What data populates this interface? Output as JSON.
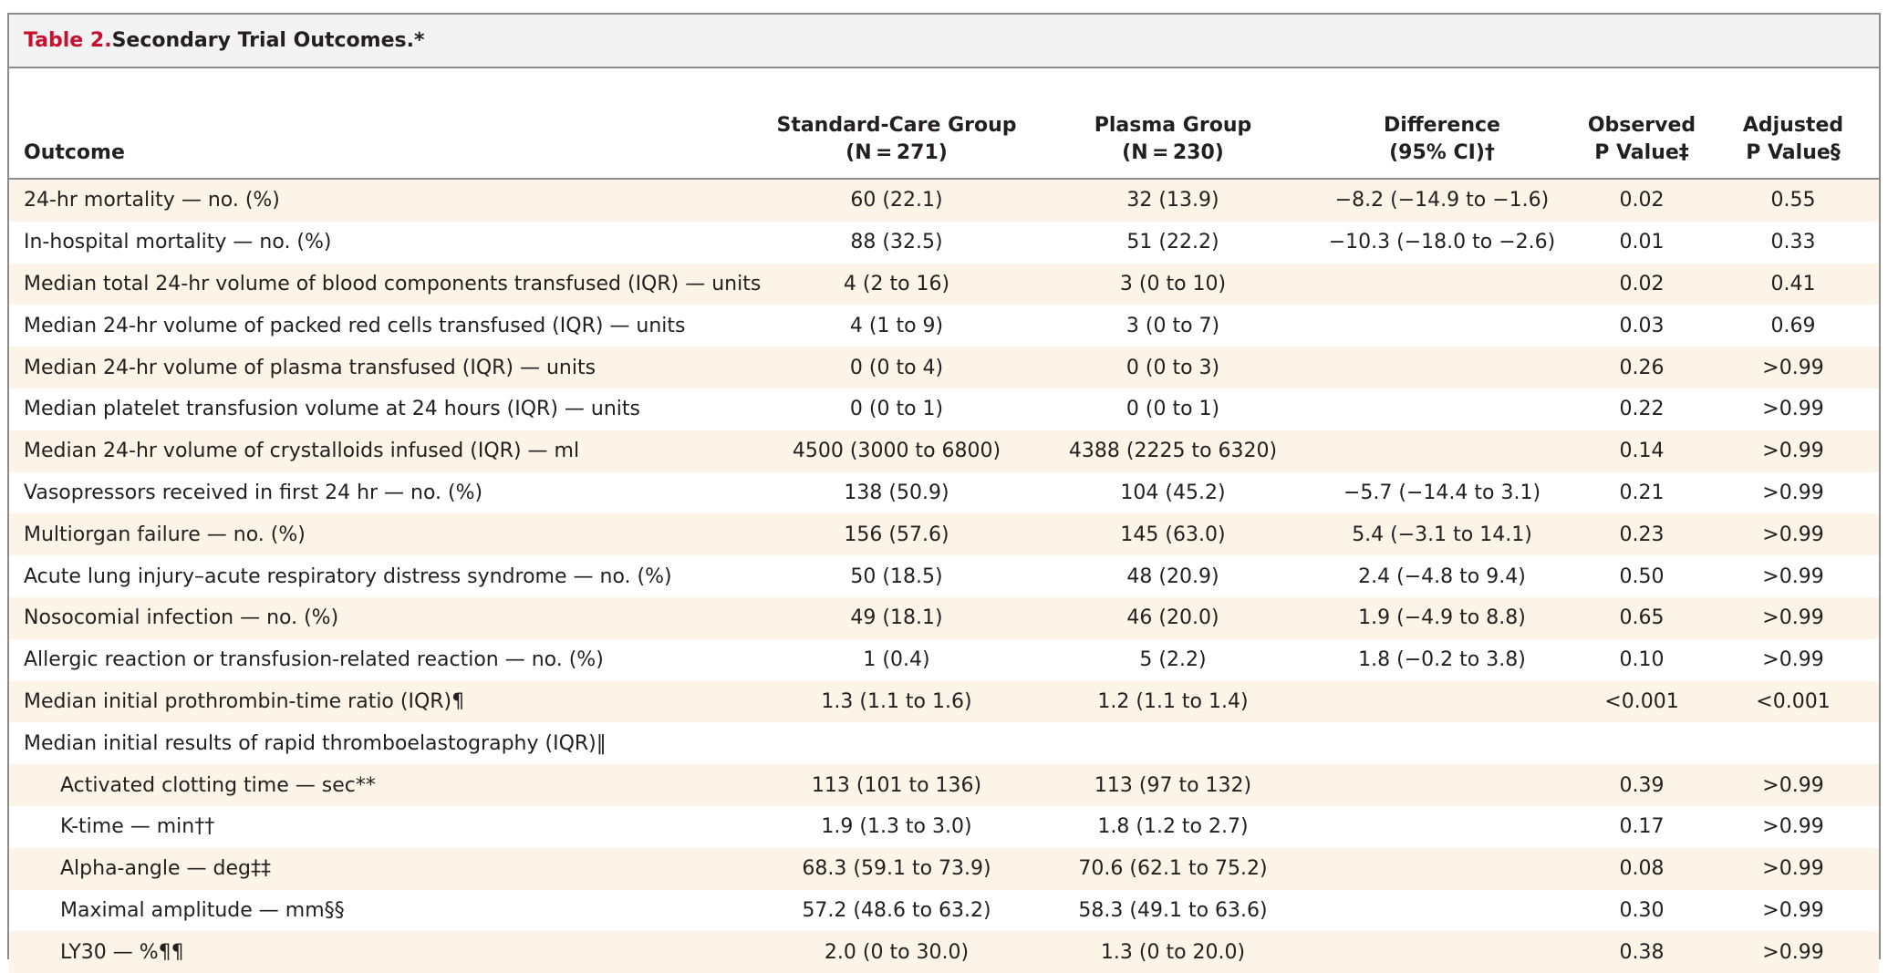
{
  "table": {
    "label": "Table 2.",
    "title": " Secondary Trial Outcomes.*",
    "headers": {
      "outcome": "Outcome",
      "standard_line1": "Standard-Care Group",
      "standard_line2": "(N = 271)",
      "plasma_line1": "Plasma Group",
      "plasma_line2": "(N = 230)",
      "difference_line1": "Difference",
      "difference_line2": "(95% CI)†",
      "observed_line1": "Observed",
      "observed_line2": "P Value‡",
      "adjusted_line1": "Adjusted",
      "adjusted_line2": "P Value§"
    },
    "rows": [
      {
        "outcome": "24-hr mortality — no. (%)",
        "standard": "60 (22.1)",
        "plasma": "32 (13.9)",
        "difference": "−8.2 (−14.9 to −1.6)",
        "observed_p": "0.02",
        "adjusted_p": "0.55"
      },
      {
        "outcome": "In-hospital mortality — no. (%)",
        "standard": "88 (32.5)",
        "plasma": "51 (22.2)",
        "difference": "−10.3 (−18.0 to −2.6)",
        "observed_p": "0.01",
        "adjusted_p": "0.33"
      },
      {
        "outcome": "Median total 24-hr volume of blood components transfused (IQR) — units",
        "standard": "4 (2 to 16)",
        "plasma": "3 (0 to 10)",
        "difference": "",
        "observed_p": "0.02",
        "adjusted_p": "0.41"
      },
      {
        "outcome": "Median 24-hr volume of packed red cells transfused (IQR) — units",
        "standard": "4 (1 to 9)",
        "plasma": "3 (0 to 7)",
        "difference": "",
        "observed_p": "0.03",
        "adjusted_p": "0.69"
      },
      {
        "outcome": "Median 24-hr volume of plasma transfused (IQR) — units",
        "standard": "0 (0 to 4)",
        "plasma": "0 (0 to 3)",
        "difference": "",
        "observed_p": "0.26",
        "adjusted_p": ">0.99"
      },
      {
        "outcome": "Median platelet transfusion volume at 24 hours (IQR) — units",
        "standard": "0 (0 to 1)",
        "plasma": "0 (0 to 1)",
        "difference": "",
        "observed_p": "0.22",
        "adjusted_p": ">0.99"
      },
      {
        "outcome": "Median 24-hr volume of crystalloids infused (IQR) — ml",
        "standard": "4500 (3000 to 6800)",
        "plasma": "4388 (2225 to 6320)",
        "difference": "",
        "observed_p": "0.14",
        "adjusted_p": ">0.99"
      },
      {
        "outcome": "Vasopressors received in first 24 hr — no. (%)",
        "standard": "138 (50.9)",
        "plasma": "104 (45.2)",
        "difference": "−5.7 (−14.4 to 3.1)",
        "observed_p": "0.21",
        "adjusted_p": ">0.99"
      },
      {
        "outcome": "Multiorgan failure — no. (%)",
        "standard": "156 (57.6)",
        "plasma": "145 (63.0)",
        "difference": "5.4 (−3.1 to 14.1)",
        "observed_p": "0.23",
        "adjusted_p": ">0.99"
      },
      {
        "outcome": "Acute lung injury–acute respiratory distress syndrome — no. (%)",
        "standard": "50 (18.5)",
        "plasma": "48 (20.9)",
        "difference": "2.4 (−4.8 to 9.4)",
        "observed_p": "0.50",
        "adjusted_p": ">0.99"
      },
      {
        "outcome": "Nosocomial infection — no. (%)",
        "standard": "49 (18.1)",
        "plasma": "46 (20.0)",
        "difference": "1.9 (−4.9 to 8.8)",
        "observed_p": "0.65",
        "adjusted_p": ">0.99"
      },
      {
        "outcome": "Allergic reaction or transfusion-related reaction — no. (%)",
        "standard": "1 (0.4)",
        "plasma": "5 (2.2)",
        "difference": "1.8 (−0.2 to 3.8)",
        "observed_p": "0.10",
        "adjusted_p": ">0.99"
      },
      {
        "outcome": "Median initial prothrombin-time ratio (IQR)¶",
        "standard": "1.3 (1.1 to 1.6)",
        "plasma": "1.2 (1.1 to 1.4)",
        "difference": "",
        "observed_p": "<0.001",
        "adjusted_p": "<0.001"
      },
      {
        "outcome": "Median initial results of rapid thromboelastography (IQR)‖",
        "standard": "",
        "plasma": "",
        "difference": "",
        "observed_p": "",
        "adjusted_p": ""
      },
      {
        "outcome": "Activated clotting time — sec**",
        "standard": "113 (101 to 136)",
        "plasma": "113 (97 to 132)",
        "difference": "",
        "observed_p": "0.39",
        "adjusted_p": ">0.99"
      },
      {
        "outcome": "K-time — min††",
        "standard": "1.9 (1.3 to 3.0)",
        "plasma": "1.8 (1.2 to 2.7)",
        "difference": "",
        "observed_p": "0.17",
        "adjusted_p": ">0.99"
      },
      {
        "outcome": "Alpha-angle — deg‡‡",
        "standard": "68.3 (59.1 to 73.9)",
        "plasma": "70.6 (62.1 to 75.2)",
        "difference": "",
        "observed_p": "0.08",
        "adjusted_p": ">0.99"
      },
      {
        "outcome": "Maximal amplitude — mm§§",
        "standard": "57.2 (48.6 to 63.2)",
        "plasma": "58.3 (49.1 to 63.6)",
        "difference": "",
        "observed_p": "0.30",
        "adjusted_p": ">0.99"
      },
      {
        "outcome": "LY30 — %¶¶",
        "standard": "2.0 (0 to 30.0)",
        "plasma": "1.3 (0 to 20.0)",
        "difference": "",
        "observed_p": "0.38",
        "adjusted_p": ">0.99"
      }
    ]
  },
  "colors": {
    "label_red": "#c8102e",
    "stripe": "#fcf4e7",
    "border": "#8c8c8c"
  }
}
